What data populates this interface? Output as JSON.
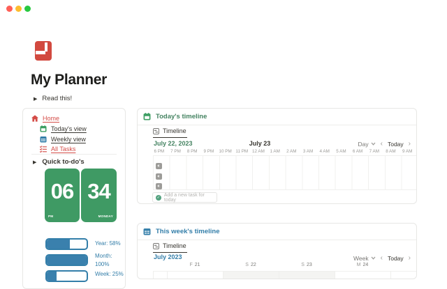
{
  "window": {
    "traffic_lights": {
      "close": "#ff5f57",
      "minimize": "#febc2e",
      "zoom": "#28c840"
    }
  },
  "page": {
    "icon": "red-journal-icon",
    "title": "My Planner",
    "read_toggle_label": "Read this!"
  },
  "sidebar": {
    "items": [
      {
        "label": "Home",
        "icon": "home-icon",
        "color": "#d44c47"
      },
      {
        "label": "Today's view",
        "icon": "calendar-day-icon",
        "color": "#3d9e63"
      },
      {
        "label": "Weekly view",
        "icon": "calendar-week-icon",
        "color": "#337ea9"
      },
      {
        "label": "All Tasks",
        "icon": "tasks-icon",
        "color": "#d44c47"
      }
    ],
    "quick_todos_label": "Quick to-do's",
    "clock": {
      "hour": "06",
      "minute": "34",
      "meridiem": "PM",
      "weekday": "MONDAY",
      "color": "#3f9a64"
    },
    "progress": {
      "color": "#337ea9",
      "bars": [
        {
          "label": "Year: 58%",
          "percent": 58
        },
        {
          "label": "Month: 100%",
          "percent": 100
        },
        {
          "label": "Week: 25%",
          "percent": 25
        }
      ]
    }
  },
  "today_card": {
    "title": "Today's timeline",
    "accent": "#448361",
    "tab_label": "Timeline",
    "range_label": "July 22, 2023",
    "date_marker": "July 23",
    "scale_label": "Day",
    "prev_label": "‹",
    "today_button_label": "Today",
    "next_label": "›",
    "hours": [
      "6 PM",
      "7 PM",
      "8 PM",
      "9 PM",
      "10 PM",
      "11 PM",
      "12 AM",
      "1 AM",
      "2 AM",
      "3 AM",
      "4 AM",
      "5 AM",
      "6 AM",
      "7 AM",
      "8 AM",
      "9 AM",
      "10 AM"
    ],
    "offscreen_item_chips": 3,
    "add_task_label": "Add a new task for today"
  },
  "week_card": {
    "title": "This week's timeline",
    "accent": "#337ea9",
    "tab_label": "Timeline",
    "range_label": "July 2023",
    "scale_label": "Week",
    "prev_label": "‹",
    "today_button_label": "Today",
    "next_label": "›",
    "days": [
      {
        "letter": "F",
        "number": "21"
      },
      {
        "letter": "S",
        "number": "22"
      },
      {
        "letter": "S",
        "number": "23"
      },
      {
        "letter": "M",
        "number": "24"
      }
    ]
  }
}
